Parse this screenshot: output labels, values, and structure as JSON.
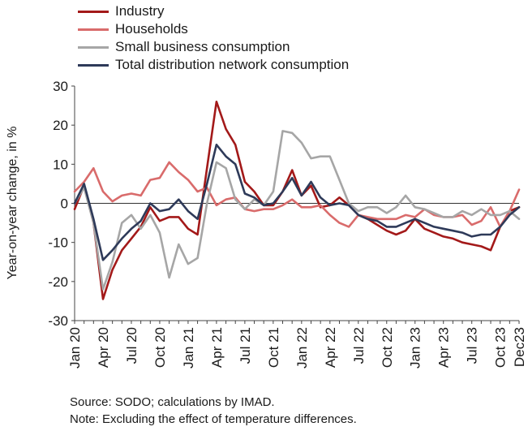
{
  "chart_data": {
    "type": "line",
    "ylabel": "Year-on-year change, in %",
    "xlabel": "",
    "ylim": [
      -30,
      30
    ],
    "yticks": [
      -30,
      -20,
      -10,
      0,
      10,
      20,
      30
    ],
    "x_months": [
      "Jan 20",
      "Feb 20",
      "Mar 20",
      "Apr 20",
      "May 20",
      "Jun 20",
      "Jul 20",
      "Aug 20",
      "Sep 20",
      "Oct 20",
      "Nov 20",
      "Dec 20",
      "Jan 21",
      "Feb 21",
      "Mar 21",
      "Apr 21",
      "May 21",
      "Jun 21",
      "Jul 21",
      "Aug 21",
      "Sep 21",
      "Oct 21",
      "Nov 21",
      "Dec 21",
      "Jan 22",
      "Feb 22",
      "Mar 22",
      "Apr 22",
      "May 22",
      "Jun 22",
      "Jul 22",
      "Aug 22",
      "Sep 22",
      "Oct 22",
      "Nov 22",
      "Dec 22",
      "Jan 23",
      "Feb 23",
      "Mar 23",
      "Apr 23",
      "May 23",
      "Jun 23",
      "Jul 23",
      "Aug 23",
      "Sep 23",
      "Oct 23",
      "Nov 23",
      "Dec 23"
    ],
    "x_tick_labels": [
      "Jan 20",
      "Apr 20",
      "Jul 20",
      "Oct 20",
      "Jan 21",
      "Apr 21",
      "Jul 21",
      "Oct 21",
      "Jan 22",
      "Apr 22",
      "Jul 22",
      "Oct 22",
      "Jan 23",
      "Apr 23",
      "Jul 23",
      "Oct 23",
      "Dec23"
    ],
    "series": [
      {
        "name": "Industry",
        "color": "#a31919",
        "values": [
          -1.5,
          4.5,
          -5,
          -24.5,
          -17,
          -12,
          -9,
          -6,
          -1,
          -4.5,
          -3.5,
          -3.5,
          -6.5,
          -8,
          9,
          26,
          19,
          15,
          5.5,
          3,
          -0.5,
          -0.5,
          3,
          8.5,
          2,
          4.5,
          -1,
          -0.5,
          1.5,
          -0.5,
          -3,
          -4,
          -5.5,
          -7,
          -8,
          -7,
          -4,
          -6.5,
          -7.5,
          -8.5,
          -9,
          -10,
          -10.5,
          -11,
          -12,
          -6,
          -2,
          -1
        ]
      },
      {
        "name": "Households",
        "color": "#d96b6b",
        "values": [
          3,
          5.5,
          9,
          3,
          0.5,
          2,
          2.5,
          2,
          6,
          6.5,
          10.5,
          8,
          6,
          3,
          4,
          -0.5,
          1,
          1.5,
          -1.5,
          -2,
          -1.5,
          -1.5,
          -0.5,
          1,
          -1,
          -1,
          -0.5,
          -3,
          -5,
          -6,
          -3,
          -3.5,
          -4,
          -4,
          -4,
          -3,
          -3.5,
          -1.5,
          -3,
          -3.5,
          -3.5,
          -3,
          -5.5,
          -4.5,
          -1,
          -6,
          -2,
          3.5
        ]
      },
      {
        "name": "Small business consumption",
        "color": "#a6a6a6",
        "values": [
          0,
          4,
          -5,
          -22,
          -15,
          -5,
          -3,
          -6.5,
          -3,
          -7.5,
          -19,
          -10.5,
          -15.5,
          -14,
          0,
          10.5,
          9,
          1,
          -1.5,
          1,
          -0.5,
          3,
          18.5,
          18,
          15.5,
          11.5,
          12,
          12,
          6,
          0,
          -2,
          -1,
          -1,
          -2.5,
          -1,
          2,
          -1,
          -1.5,
          -2.5,
          -3.5,
          -3.5,
          -2,
          -3,
          -1.5,
          -3,
          -3,
          -2,
          -4
        ]
      },
      {
        "name": "Total distribution network consumption",
        "color": "#2e3a59",
        "values": [
          0,
          5,
          -4,
          -14.5,
          -12,
          -9,
          -6.5,
          -4.5,
          0,
          -2,
          -1.5,
          1,
          -2,
          -4,
          5,
          15,
          12,
          10,
          2.5,
          1.5,
          -0.5,
          0,
          3,
          6.5,
          2,
          5.5,
          1.5,
          -0.5,
          0,
          -0.5,
          -3,
          -4,
          -4.5,
          -6,
          -6,
          -5,
          -4,
          -5,
          -6,
          -6.5,
          -7,
          -7.5,
          -8.5,
          -8,
          -8,
          -6,
          -3,
          -1
        ]
      }
    ]
  },
  "notes": {
    "source": "Source: SODO; calculations by IMAD.",
    "note": "Note: Excluding the effect of temperature differences."
  }
}
